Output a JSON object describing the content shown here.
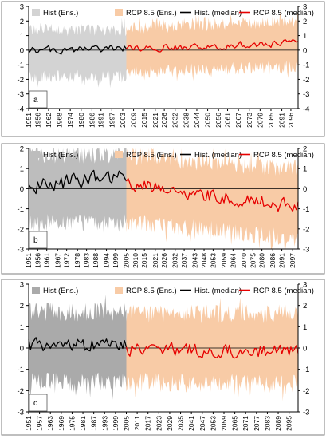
{
  "chart_data": [
    {
      "type": "line",
      "panel_label": "a",
      "ylim": [
        -4,
        3
      ],
      "yticks": [
        -4,
        -3,
        -2,
        -1,
        0,
        1,
        2,
        3
      ],
      "xlim": [
        1951,
        2100
      ],
      "hist_end": 2005,
      "xticks": [
        1951,
        1956,
        1962,
        1968,
        1974,
        1980,
        1986,
        1991,
        1997,
        2003,
        2009,
        2015,
        2021,
        2026,
        2032,
        2038,
        2044,
        2050,
        2056,
        2061,
        2067,
        2073,
        2079,
        2085,
        2091,
        2096
      ],
      "legend": [
        "Hist (Ens.)",
        "RCP 8.5 (Ens.)",
        "Hist. (median)",
        "RCP 8.5 (median)"
      ],
      "series": [
        {
          "name": "Hist (Ens.)",
          "kind": "band",
          "x_range": [
            1951,
            2005
          ],
          "lower": -1.8,
          "upper": 1.4
        },
        {
          "name": "RCP 8.5 (Ens.)",
          "kind": "band",
          "x_range": [
            2005,
            2100
          ],
          "lower_start": -1.5,
          "lower_end": -1.1,
          "upper_start": 1.5,
          "upper_end": 2.0
        },
        {
          "name": "Hist. (median)",
          "kind": "line",
          "x_range": [
            1951,
            2005
          ],
          "mean": 0.0,
          "trend": 0.1,
          "amplitude": 0.35
        },
        {
          "name": "RCP 8.5 (median)",
          "kind": "line",
          "x_range": [
            2005,
            2100
          ],
          "mean": 0.1,
          "trend": 0.4,
          "amplitude": 0.35
        }
      ]
    },
    {
      "type": "line",
      "panel_label": "b",
      "ylim": [
        -3,
        2
      ],
      "yticks": [
        -3,
        -2,
        -1,
        0,
        1,
        2
      ],
      "xlim": [
        1951,
        2100
      ],
      "hist_end": 2005,
      "xticks": [
        1951,
        1956,
        1961,
        1967,
        1972,
        1978,
        1983,
        1988,
        1994,
        1999,
        2005,
        2010,
        2015,
        2021,
        2026,
        2032,
        2037,
        2043,
        2048,
        2053,
        2059,
        2064,
        2070,
        2075,
        2080,
        2086,
        2091,
        2097
      ],
      "legend": [
        "Hist (Ens.)",
        "RCP 8.5 (Ens.)",
        "Hist. (median)",
        "RCP 8.5 (median)"
      ],
      "series": [
        {
          "name": "Hist (Ens.)",
          "kind": "band",
          "x_range": [
            1951,
            2005
          ],
          "lower": -1.7,
          "upper": 1.7
        },
        {
          "name": "RCP 8.5 (Ens.)",
          "kind": "band",
          "x_range": [
            2005,
            2100
          ],
          "lower_start": -1.6,
          "lower_end": -2.5,
          "upper_start": 1.6,
          "upper_end": 1.0
        },
        {
          "name": "Hist. (median)",
          "kind": "line",
          "x_range": [
            1951,
            2005
          ],
          "mean": 0.2,
          "trend": 0.3,
          "amplitude": 0.6
        },
        {
          "name": "RCP 8.5 (median)",
          "kind": "line",
          "x_range": [
            2005,
            2100
          ],
          "mean": 0.2,
          "trend": -1.1,
          "amplitude": 0.5
        }
      ]
    },
    {
      "type": "line",
      "panel_label": "c",
      "ylim": [
        -3,
        3
      ],
      "yticks": [
        -3,
        -2,
        -1,
        0,
        1,
        2,
        3
      ],
      "xlim": [
        1951,
        2100
      ],
      "hist_end": 2005,
      "xticks": [
        1951,
        1957,
        1963,
        1969,
        1975,
        1981,
        1987,
        1993,
        1999,
        2005,
        2011,
        2017,
        2023,
        2029,
        2035,
        2041,
        2047,
        2053,
        2059,
        2065,
        2071,
        2077,
        2083,
        2089,
        2095
      ],
      "legend": [
        "Hist (Ens.)",
        "RCP 8.5 (Ens.)",
        "Hist. (median)",
        "RCP 8.5 (median)"
      ],
      "series": [
        {
          "name": "Hist (Ens.)",
          "kind": "band",
          "x_range": [
            1951,
            2005
          ],
          "lower": -1.6,
          "upper": 1.7
        },
        {
          "name": "RCP 8.5 (Ens.)",
          "kind": "band",
          "x_range": [
            2005,
            2100
          ],
          "lower_start": -1.6,
          "lower_end": -1.7,
          "upper_start": 1.6,
          "upper_end": 1.6
        },
        {
          "name": "Hist. (median)",
          "kind": "line",
          "x_range": [
            1951,
            2005
          ],
          "mean": 0.1,
          "trend": 0.0,
          "amplitude": 0.5
        },
        {
          "name": "RCP 8.5 (median)",
          "kind": "line",
          "x_range": [
            2005,
            2100
          ],
          "mean": 0.0,
          "trend": -0.2,
          "amplitude": 0.45
        }
      ]
    }
  ],
  "colors": {
    "hist_band_a": "#d3d3d3",
    "hist_band_b": "#bdbdbd",
    "hist_band_c": "#aaaaaa",
    "rcp_band": "#f8cba6",
    "hist_line": "#000000",
    "rcp_line": "#e60000",
    "frame": "#7f7f7f"
  }
}
